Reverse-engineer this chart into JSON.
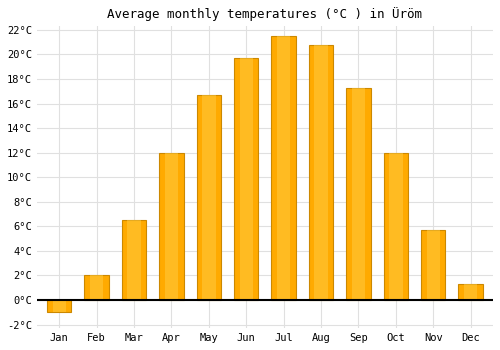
{
  "title": "Average monthly temperatures (°C ) in Üröm",
  "months": [
    "Jan",
    "Feb",
    "Mar",
    "Apr",
    "May",
    "Jun",
    "Jul",
    "Aug",
    "Sep",
    "Oct",
    "Nov",
    "Dec"
  ],
  "values": [
    -1.0,
    2.0,
    6.5,
    12.0,
    16.7,
    19.7,
    21.5,
    20.8,
    17.3,
    12.0,
    5.7,
    1.3
  ],
  "bar_color": "#FFAA00",
  "bar_edge_color": "#CC8800",
  "ylim_min": -2,
  "ylim_max": 22,
  "yticks": [
    -2,
    0,
    2,
    4,
    6,
    8,
    10,
    12,
    14,
    16,
    18,
    20,
    22
  ],
  "background_color": "#ffffff",
  "grid_color": "#e0e0e0",
  "title_fontsize": 9,
  "tick_fontsize": 7.5,
  "zero_line_color": "#000000",
  "bar_width": 0.65
}
